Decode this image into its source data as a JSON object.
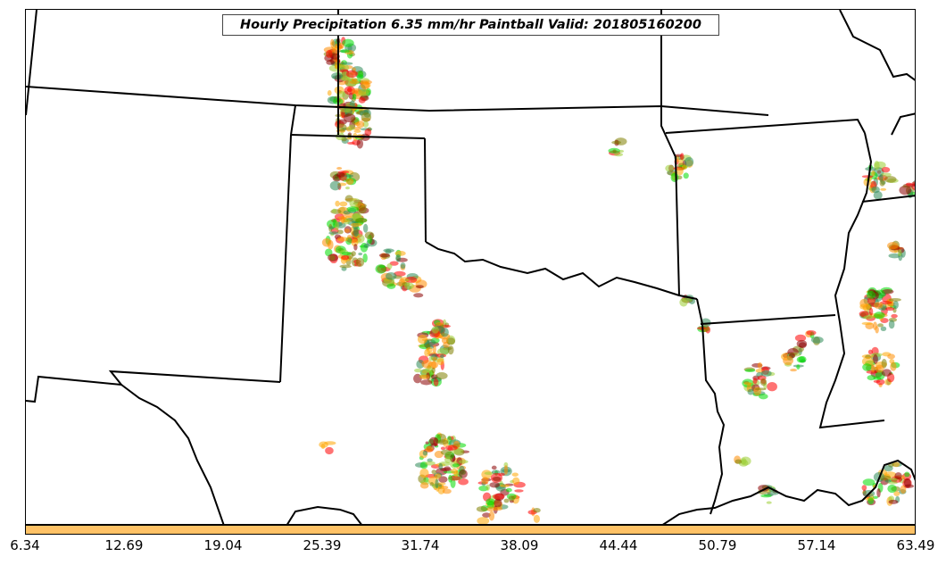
{
  "title": "Hourly Precipitation 6.35 mm/hr Paintball Valid: 201805160200",
  "colorbar": {
    "color": "#ffc266",
    "tick_labels": [
      "6.34",
      "12.69",
      "19.04",
      "25.39",
      "31.74",
      "38.09",
      "44.44",
      "50.79",
      "57.14",
      "63.49"
    ]
  },
  "paint_colors": [
    "#ff0000",
    "#ff8c00",
    "#ffa500",
    "#00dd00",
    "#8b0000",
    "#808000",
    "#9acd32",
    "#2e8b57"
  ]
}
